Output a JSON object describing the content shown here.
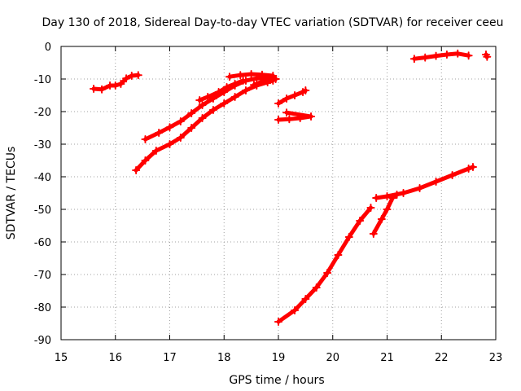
{
  "chart_data": {
    "type": "scatter",
    "title": "Day 130 of 2018, Sidereal Day-to-day VTEC variation (SDTVAR) for receiver ceeu",
    "xlabel": "GPS time / hours",
    "ylabel": "SDTVAR / TECUs",
    "xlim": [
      15,
      23
    ],
    "ylim": [
      -90,
      0
    ],
    "xticks": [
      "15",
      "16",
      "17",
      "18",
      "19",
      "20",
      "21",
      "22",
      "23"
    ],
    "yticks": [
      "0",
      "-10",
      "-20",
      "-30",
      "-40",
      "-50",
      "-60",
      "-70",
      "-80",
      "-90"
    ],
    "grid": true,
    "marker": "+",
    "color": "#ff0000",
    "series": [
      {
        "points": [
          [
            15.6,
            -13
          ],
          [
            15.75,
            -13.2
          ],
          [
            15.9,
            -12
          ],
          [
            16.0,
            -12
          ],
          [
            16.1,
            -11.5
          ],
          [
            16.2,
            -9.8
          ],
          [
            16.3,
            -9
          ],
          [
            16.42,
            -8.8
          ]
        ]
      },
      {
        "points": [
          [
            16.55,
            -28.5
          ],
          [
            16.8,
            -26.5
          ],
          [
            17.0,
            -24.8
          ],
          [
            17.2,
            -23
          ],
          [
            17.4,
            -20.5
          ],
          [
            17.6,
            -18
          ],
          [
            17.8,
            -16
          ],
          [
            18.0,
            -14
          ],
          [
            18.2,
            -12
          ],
          [
            18.4,
            -10.5
          ],
          [
            18.6,
            -9.8
          ],
          [
            18.8,
            -9.6
          ],
          [
            18.9,
            -9.5
          ]
        ]
      },
      {
        "points": [
          [
            16.38,
            -38
          ],
          [
            16.55,
            -35
          ],
          [
            16.75,
            -32
          ],
          [
            17.0,
            -30
          ],
          [
            17.2,
            -28
          ],
          [
            17.4,
            -25
          ],
          [
            17.6,
            -22
          ],
          [
            17.8,
            -19.5
          ],
          [
            18.0,
            -17.5
          ],
          [
            18.2,
            -15.5
          ],
          [
            18.4,
            -13.5
          ],
          [
            18.6,
            -12
          ],
          [
            18.8,
            -11
          ],
          [
            18.9,
            -10.5
          ]
        ]
      },
      {
        "points": [
          [
            17.55,
            -16.5
          ],
          [
            17.7,
            -15.5
          ],
          [
            17.9,
            -14
          ],
          [
            18.05,
            -12.5
          ],
          [
            18.2,
            -11.5
          ],
          [
            18.35,
            -10.5
          ]
        ]
      },
      {
        "points": [
          [
            18.1,
            -9.3
          ],
          [
            18.3,
            -8.8
          ],
          [
            18.5,
            -8.5
          ],
          [
            18.7,
            -8.7
          ],
          [
            18.9,
            -9
          ]
        ]
      },
      {
        "points": [
          [
            18.55,
            -11.8
          ],
          [
            18.7,
            -10.8
          ],
          [
            18.85,
            -10.3
          ],
          [
            18.95,
            -10
          ]
        ]
      },
      {
        "points": [
          [
            19.0,
            -17.5
          ],
          [
            19.15,
            -16
          ],
          [
            19.3,
            -15
          ],
          [
            19.45,
            -14
          ],
          [
            19.5,
            -13.5
          ]
        ]
      },
      {
        "points": [
          [
            19.0,
            -22.5
          ],
          [
            19.2,
            -22.3
          ],
          [
            19.4,
            -22
          ],
          [
            19.6,
            -21.5
          ],
          [
            19.15,
            -20.3
          ]
        ]
      },
      {
        "points": [
          [
            19.0,
            -84.5
          ],
          [
            19.3,
            -81
          ],
          [
            19.5,
            -77.5
          ],
          [
            19.7,
            -74
          ],
          [
            19.9,
            -69.5
          ],
          [
            20.1,
            -64
          ],
          [
            20.3,
            -58.5
          ],
          [
            20.5,
            -53.5
          ],
          [
            20.7,
            -49.5
          ]
        ]
      },
      {
        "points": [
          [
            20.75,
            -57.5
          ],
          [
            20.9,
            -53
          ],
          [
            21.0,
            -50
          ],
          [
            21.1,
            -46.5
          ],
          [
            21.18,
            -45.5
          ]
        ]
      },
      {
        "points": [
          [
            20.8,
            -46.5
          ],
          [
            21.0,
            -46
          ],
          [
            21.3,
            -45
          ],
          [
            21.6,
            -43.5
          ],
          [
            21.9,
            -41.5
          ],
          [
            22.2,
            -39.5
          ],
          [
            22.5,
            -37.5
          ],
          [
            22.58,
            -37
          ]
        ]
      },
      {
        "points": [
          [
            21.5,
            -3.8
          ],
          [
            21.7,
            -3.4
          ],
          [
            21.9,
            -2.9
          ],
          [
            22.1,
            -2.5
          ],
          [
            22.3,
            -2.2
          ],
          [
            22.5,
            -2.8
          ]
        ]
      },
      {
        "points": [
          [
            22.82,
            -2.5
          ],
          [
            22.84,
            -3.2
          ]
        ]
      }
    ]
  }
}
